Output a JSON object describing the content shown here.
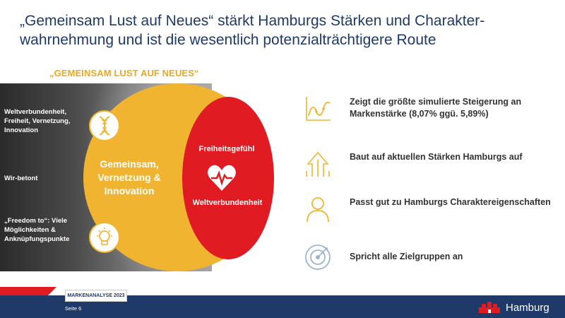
{
  "title": "„Gemeinsam Lust auf Neues“ stärkt Hamburgs Stärken und Charakter-wahrnehmung und ist die wesentlich potenzialträchtigere Route",
  "section_label": "„GEMEINSAM LUST AUF NEUES“",
  "photo_labels": {
    "top": "Weltverbundenheit, Freiheit, Vernetzung, Innovation",
    "middle": "Wir-betont",
    "bottom": "„Freedom to“: Viele Möglichkeiten & Anknüpfungspunkte"
  },
  "venn": {
    "yellow_label": "Gemeinsam, Vernetzung & Innovation",
    "red_top": "Freiheitsgefühl",
    "red_bottom": "Weltverbundenheit"
  },
  "benefits": [
    {
      "icon": "chart-line-icon",
      "text": "Zeigt die größte simulierte Steigerung an Markenstärke (8,07% ggü. 5,89%)"
    },
    {
      "icon": "growth-arrows-icon",
      "text": "Baut auf aktuellen Stärken Hamburgs auf"
    },
    {
      "icon": "person-icon",
      "text": "Passt gut zu Hamburgs Charaktereigenschaften"
    },
    {
      "icon": "target-icon",
      "text": "Spricht alle Zielgruppen an"
    }
  ],
  "footer": {
    "badge": "MARKENANALYSE 2023",
    "page": "Seite 6",
    "logo_text": "Hamburg"
  },
  "colors": {
    "navy": "#1f3a68",
    "yellow": "#f0b431",
    "red": "#e11b22"
  }
}
